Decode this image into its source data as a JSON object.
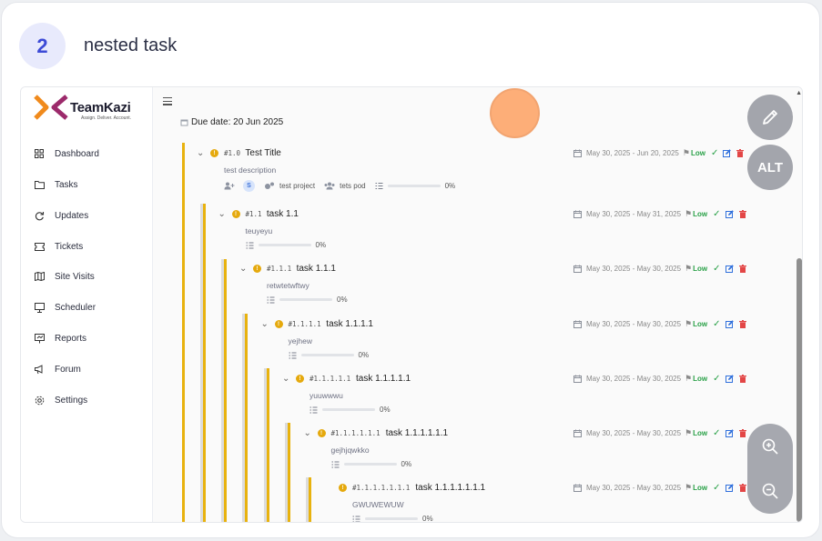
{
  "step": {
    "number": "2",
    "title": "nested task"
  },
  "app": {
    "logo_word": "TeamKazi",
    "logo_tagline": "Assign. Deliver. Account.",
    "nav": [
      {
        "label": "Dashboard",
        "icon": "grid-icon"
      },
      {
        "label": "Tasks",
        "icon": "folder-icon"
      },
      {
        "label": "Updates",
        "icon": "refresh-icon"
      },
      {
        "label": "Tickets",
        "icon": "ticket-icon"
      },
      {
        "label": "Site Visits",
        "icon": "map-icon"
      },
      {
        "label": "Scheduler",
        "icon": "monitor-icon"
      },
      {
        "label": "Reports",
        "icon": "presentation-icon"
      },
      {
        "label": "Forum",
        "icon": "megaphone-icon"
      },
      {
        "label": "Settings",
        "icon": "gear-icon"
      }
    ],
    "due_date": "Due date: 20 Jun 2025",
    "tasks": [
      {
        "num": "#1.0",
        "name": "Test Title",
        "desc": "test description",
        "dates": "May 30, 2025 - Jun 20, 2025",
        "priority": "Low",
        "progress": "0%",
        "avatar": "S",
        "project": "test project",
        "pod": "tets pod"
      },
      {
        "num": "#1.1",
        "name": "task 1.1",
        "desc": "teuyeyu",
        "dates": "May 30, 2025 - May 31, 2025",
        "priority": "Low",
        "progress": "0%"
      },
      {
        "num": "#1.1.1",
        "name": "task 1.1.1",
        "desc": "retwtetwftwy",
        "dates": "May 30, 2025 - May 30, 2025",
        "priority": "Low",
        "progress": "0%"
      },
      {
        "num": "#1.1.1.1",
        "name": "task 1.1.1.1",
        "desc": "yejhew",
        "dates": "May 30, 2025 - May 30, 2025",
        "priority": "Low",
        "progress": "0%"
      },
      {
        "num": "#1.1.1.1.1",
        "name": "task 1.1.1.1.1",
        "desc": "yuuwwwu",
        "dates": "May 30, 2025 - May 30, 2025",
        "priority": "Low",
        "progress": "0%"
      },
      {
        "num": "#1.1.1.1.1.1",
        "name": "task 1.1.1.1.1.1",
        "desc": "gejhjqwkko",
        "dates": "May 30, 2025 - May 30, 2025",
        "priority": "Low",
        "progress": "0%"
      },
      {
        "num": "#1.1.1.1.1.1.1",
        "name": "task 1.1.1.1.1.1.1",
        "desc": "GWUWEWUW",
        "dates": "May 30, 2025 - May 30, 2025",
        "priority": "Low",
        "progress": "0%"
      }
    ]
  },
  "overlay": {
    "alt_label": "ALT"
  },
  "colors": {
    "accent": "#e8b20e",
    "low": "#2aa148",
    "badge": "#3d4bd6",
    "click": "#fda060"
  }
}
